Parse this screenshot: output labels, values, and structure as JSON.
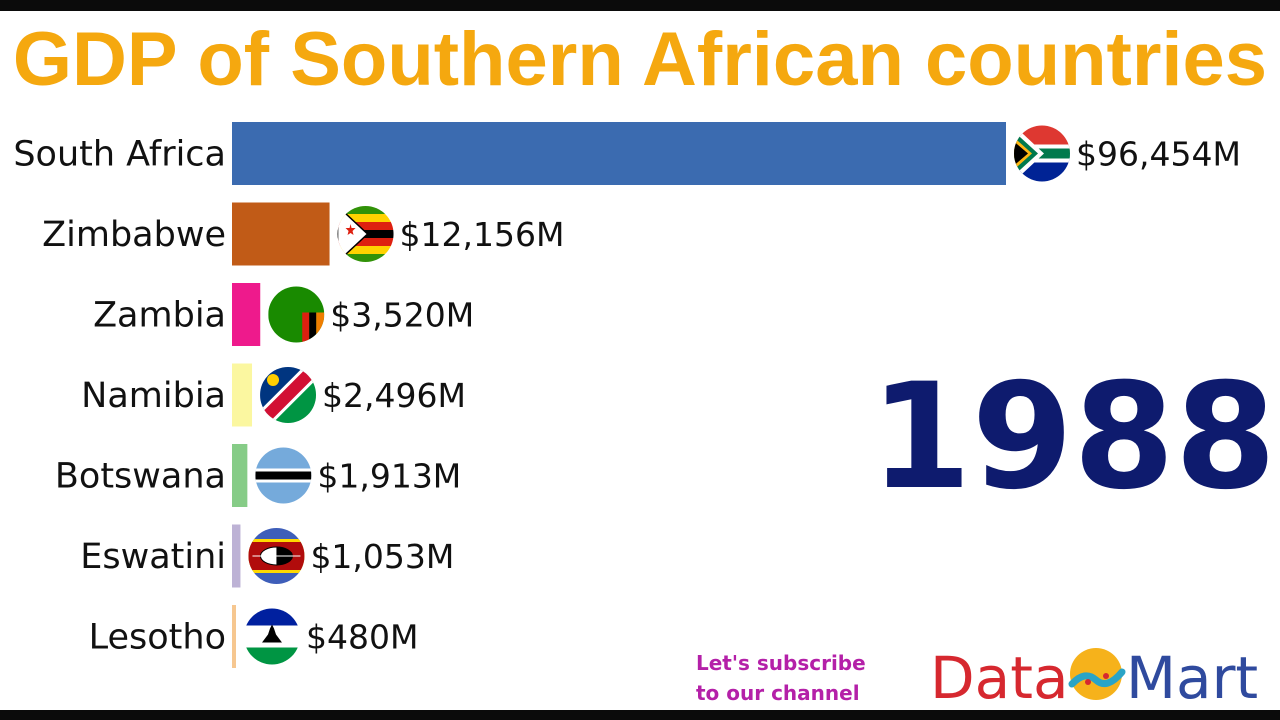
{
  "title": "GDP of Southern African countries",
  "year": "1988",
  "subscribe": {
    "line1": "Let's subscribe",
    "line2": "to our channel"
  },
  "logo": {
    "part1": "Data",
    "part2": "Mart",
    "colors": {
      "data": "#d6282f",
      "mart": "#2f4a9e",
      "sun": "#f6b21b",
      "wave": "#2aa4c6"
    }
  },
  "chart_data": {
    "type": "bar",
    "orientation": "horizontal",
    "title": "GDP of Southern African countries",
    "categories": [
      "South Africa",
      "Zimbabwe",
      "Zambia",
      "Namibia",
      "Botswana",
      "Eswatini",
      "Lesotho"
    ],
    "values": [
      96454,
      12156,
      3520,
      2496,
      1913,
      1053,
      480
    ],
    "value_labels": [
      "$96,454M",
      "$12,156M",
      "$3,520M",
      "$2,496M",
      "$1,913M",
      "$1,053M",
      "$480M"
    ],
    "unit": "M USD",
    "colors": [
      "#3b6bb0",
      "#c15b17",
      "#ee1a8c",
      "#fbf7a0",
      "#86cc87",
      "#bdb2d5",
      "#f6c790"
    ],
    "flags": [
      "south-africa-flag-icon",
      "zimbabwe-flag-icon",
      "zambia-flag-icon",
      "namibia-flag-icon",
      "botswana-flag-icon",
      "eswatini-flag-icon",
      "lesotho-flag-icon"
    ],
    "xlim": [
      0,
      96454
    ],
    "grid": false,
    "legend": "none"
  }
}
